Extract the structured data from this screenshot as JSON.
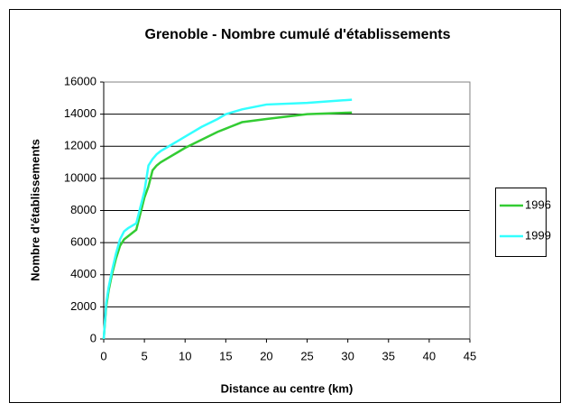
{
  "chart_data": {
    "type": "line",
    "title": "Grenoble - Nombre cumulé d'établissements",
    "x_label": "Distance au centre (km)",
    "y_label": "Nombre d'établissements",
    "x": [
      0,
      0.3,
      0.6,
      1,
      1.5,
      2,
      2.5,
      3,
      4,
      4.5,
      5,
      5.5,
      6,
      6.5,
      7,
      8,
      9,
      10,
      12,
      14,
      15,
      17,
      20,
      25,
      30.5
    ],
    "series": [
      {
        "name": "1996",
        "color": "#33cc33",
        "values": [
          0,
          2000,
          3000,
          4000,
          5000,
          5800,
          6200,
          6400,
          6800,
          7800,
          8800,
          9500,
          10500,
          10800,
          11000,
          11300,
          11600,
          11900,
          12400,
          12900,
          13100,
          13500,
          13700,
          14000,
          14100
        ]
      },
      {
        "name": "1999",
        "color": "#33ffff",
        "values": [
          0,
          2200,
          3200,
          4200,
          5300,
          6200,
          6700,
          6900,
          7200,
          8200,
          9200,
          10800,
          11200,
          11500,
          11700,
          12000,
          12300,
          12600,
          13200,
          13700,
          14000,
          14300,
          14600,
          14700,
          14900
        ]
      }
    ],
    "xlim": [
      0,
      45
    ],
    "xticks": [
      0,
      5,
      10,
      15,
      20,
      25,
      30,
      35,
      40,
      45
    ],
    "ylim": [
      0,
      16000
    ],
    "yticks": [
      0,
      2000,
      4000,
      6000,
      8000,
      10000,
      12000,
      14000,
      16000
    ],
    "grid": true,
    "legend": "right"
  }
}
